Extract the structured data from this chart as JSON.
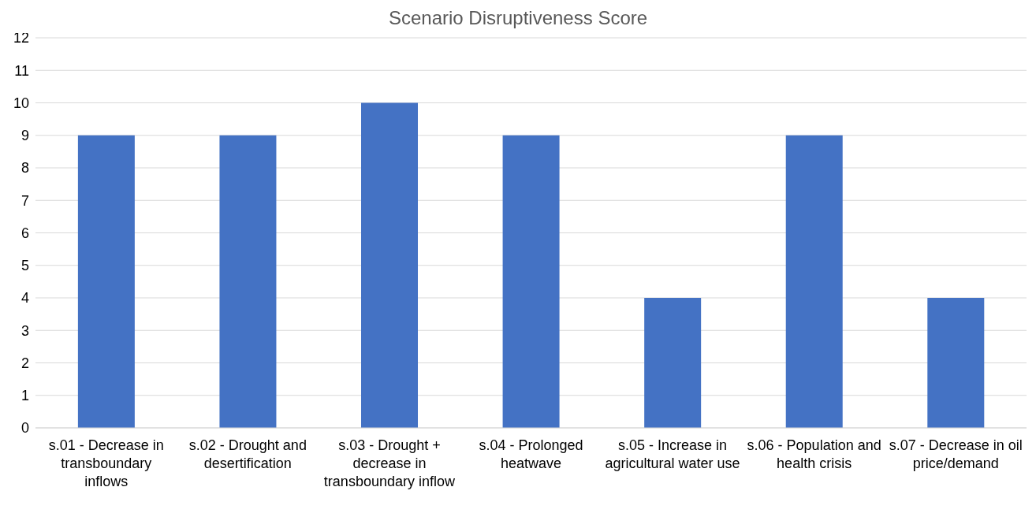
{
  "chart_data": {
    "type": "bar",
    "title": "Scenario Disruptiveness Score",
    "categories": [
      "s.01 - Decrease in transboundary inflows",
      "s.02 - Drought and desertification",
      "s.03 - Drought + decrease in transboundary inflow",
      "s.04 - Prolonged heatwave",
      "s.05 - Increase in agricultural water use",
      "s.06 - Population and health crisis",
      "s.07 - Decrease in oil price/demand"
    ],
    "values": [
      9,
      9,
      10,
      9,
      4,
      9,
      4
    ],
    "color": "#4472c4",
    "ylim": [
      0,
      12
    ],
    "yticks": [
      0,
      1,
      2,
      3,
      4,
      5,
      6,
      7,
      8,
      9,
      10,
      11,
      12
    ],
    "grid": "y",
    "legend": false
  }
}
